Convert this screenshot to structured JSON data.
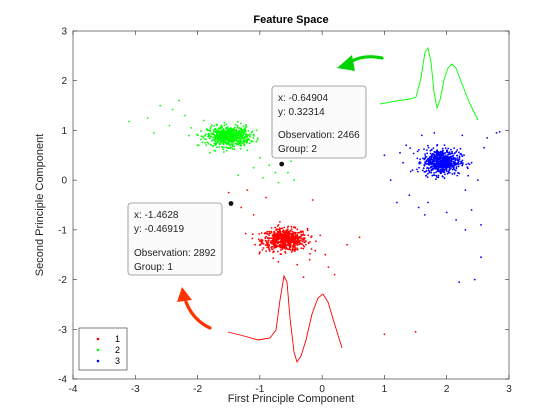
{
  "chart_data": {
    "type": "scatter",
    "title": "Feature Space",
    "xlabel": "First Principle Component",
    "ylabel": "Second Principle Component",
    "xlim": [
      -4,
      3
    ],
    "ylim": [
      -4,
      3
    ],
    "xticks": [
      -4,
      -3,
      -2,
      -1,
      0,
      1,
      2,
      3
    ],
    "yticks": [
      -4,
      -3,
      -2,
      -1,
      0,
      1,
      2,
      3
    ],
    "grid": false,
    "legend_position": "bottom-left",
    "series": [
      {
        "name": "1",
        "color": "#ff0000",
        "cluster_center": [
          -0.6,
          -1.2
        ],
        "cluster_spread": [
          0.18,
          0.11
        ],
        "outliers": [
          [
            -1.46,
            -0.47
          ],
          [
            -1.3,
            -0.55
          ],
          [
            -1.1,
            -0.7
          ],
          [
            -1.2,
            -0.2
          ],
          [
            -0.9,
            -0.35
          ],
          [
            -1.5,
            -0.25
          ],
          [
            -0.2,
            -1.6
          ],
          [
            0.05,
            -1.5
          ],
          [
            0.1,
            -1.75
          ],
          [
            -0.4,
            -1.7
          ],
          [
            0.4,
            -1.3
          ],
          [
            0.6,
            -1.15
          ],
          [
            -0.3,
            -1.95
          ],
          [
            -1.0,
            -1.45
          ],
          [
            0.2,
            -1.9
          ],
          [
            -0.15,
            -0.4
          ],
          [
            1.0,
            -3.1
          ],
          [
            1.5,
            -3.05
          ],
          [
            -0.7,
            -0.9
          ],
          [
            -0.45,
            -0.95
          ]
        ]
      },
      {
        "name": "2",
        "color": "#00ff00",
        "cluster_center": [
          -1.5,
          0.88
        ],
        "cluster_spread": [
          0.17,
          0.1
        ],
        "outliers": [
          [
            -2.6,
            1.5
          ],
          [
            -2.4,
            1.42
          ],
          [
            -2.2,
            1.3
          ],
          [
            -2.8,
            1.25
          ],
          [
            -2.45,
            1.1
          ],
          [
            -2.1,
            1.05
          ],
          [
            -3.1,
            1.18
          ],
          [
            -2.7,
            0.95
          ],
          [
            -1.9,
            1.2
          ],
          [
            -2.3,
            1.6
          ],
          [
            -1.2,
            0.6
          ],
          [
            -1.0,
            0.45
          ],
          [
            -0.85,
            0.3
          ],
          [
            -0.65,
            0.32
          ],
          [
            -0.55,
            0.15
          ],
          [
            -0.75,
            0.15
          ],
          [
            -0.95,
            0.05
          ],
          [
            -1.1,
            0.25
          ],
          [
            -1.35,
            0.1
          ],
          [
            -0.5,
            0.38
          ],
          [
            -0.45,
            0.0
          ],
          [
            -0.7,
            -0.05
          ],
          [
            -1.8,
            0.55
          ],
          [
            -2.0,
            0.7
          ]
        ]
      },
      {
        "name": "3",
        "color": "#0000ff",
        "cluster_center": [
          1.92,
          0.37
        ],
        "cluster_spread": [
          0.15,
          0.13
        ],
        "outliers": [
          [
            1.25,
            0.55
          ],
          [
            1.3,
            0.35
          ],
          [
            1.45,
            0.2
          ],
          [
            1.4,
            -0.3
          ],
          [
            1.2,
            -0.45
          ],
          [
            1.0,
            0.5
          ],
          [
            1.1,
            0.0
          ],
          [
            2.3,
            -0.2
          ],
          [
            2.5,
            0.0
          ],
          [
            2.6,
            0.65
          ],
          [
            2.65,
            0.85
          ],
          [
            2.4,
            -0.6
          ],
          [
            1.7,
            -0.45
          ],
          [
            1.65,
            -0.7
          ],
          [
            2.15,
            -0.8
          ],
          [
            2.45,
            -2.0
          ],
          [
            2.2,
            -2.05
          ],
          [
            2.3,
            -1.0
          ],
          [
            2.55,
            -1.55
          ],
          [
            1.55,
            -0.55
          ],
          [
            2.0,
            -0.65
          ],
          [
            2.4,
            0.35
          ],
          [
            1.8,
            0.95
          ],
          [
            2.8,
            0.95
          ],
          [
            2.85,
            0.97
          ],
          [
            2.25,
            0.9
          ],
          [
            2.55,
            -0.9
          ],
          [
            1.35,
            0.7
          ],
          [
            1.6,
            0.9
          ]
        ]
      }
    ],
    "highlighted_points": [
      {
        "x": -0.64904,
        "y": 0.32314,
        "observation": 2466,
        "group": 2
      },
      {
        "x": -1.4628,
        "y": -0.46919,
        "observation": 2892,
        "group": 1
      }
    ],
    "waveform_insets": [
      {
        "group": 2,
        "color": "#00ff00"
      },
      {
        "group": 1,
        "color": "#ff0000"
      }
    ],
    "arrows": [
      {
        "color": "#00d400",
        "target_group": 2
      },
      {
        "color": "#ff3300",
        "target_group": 1
      }
    ]
  },
  "tooltips": [
    {
      "x_line": "x: -0.64904",
      "y_line": "y: 0.32314",
      "obs_line": "Observation: 2466",
      "group_line": "Group: 2"
    },
    {
      "x_line": "x: -1.4628",
      "y_line": "y: -0.46919",
      "obs_line": "Observation: 2892",
      "group_line": "Group: 1"
    }
  ]
}
